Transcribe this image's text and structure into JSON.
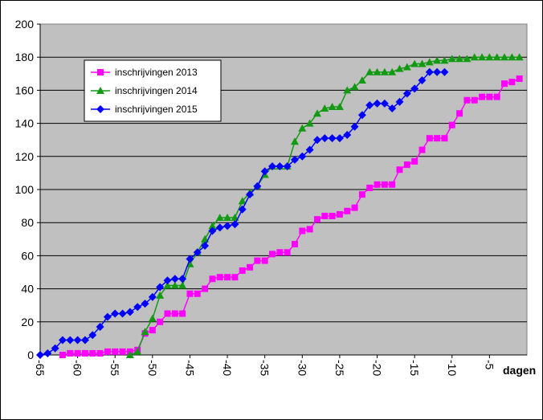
{
  "chart_data": {
    "type": "line",
    "x": [
      -65,
      -64,
      -63,
      -62,
      -61,
      -60,
      -59,
      -58,
      -57,
      -56,
      -55,
      -54,
      -53,
      -52,
      -51,
      -50,
      -49,
      -48,
      -47,
      -46,
      -45,
      -44,
      -43,
      -42,
      -41,
      -40,
      -39,
      -38,
      -37,
      -36,
      -35,
      -34,
      -33,
      -32,
      -31,
      -30,
      -29,
      -28,
      -27,
      -26,
      -25,
      -24,
      -23,
      -22,
      -21,
      -20,
      -19,
      -18,
      -17,
      -16,
      -15,
      -14,
      -13,
      -12,
      -11,
      -10,
      -9,
      -8,
      -7,
      -6,
      -5,
      -4,
      -3,
      -2,
      -1
    ],
    "series": [
      {
        "name": "inschrijvingen 2013",
        "color": "#ff00ff",
        "marker": "square",
        "values": [
          null,
          null,
          null,
          0,
          1,
          1,
          1,
          1,
          1,
          2,
          2,
          2,
          2,
          3,
          13,
          15,
          20,
          25,
          25,
          25,
          37,
          37,
          40,
          46,
          47,
          47,
          47,
          51,
          53,
          57,
          57,
          61,
          62,
          62,
          67,
          75,
          76,
          82,
          84,
          84,
          85,
          87,
          89,
          97,
          101,
          103,
          103,
          103,
          112,
          115,
          117,
          124,
          131,
          131,
          131,
          139,
          146,
          154,
          154,
          156,
          156,
          156,
          164,
          165,
          167
        ]
      },
      {
        "name": "inschrijvingen 2014",
        "color": "#139a13",
        "marker": "triangle",
        "values": [
          null,
          null,
          null,
          null,
          null,
          null,
          null,
          null,
          null,
          null,
          null,
          null,
          0,
          2,
          14,
          22,
          36,
          42,
          42,
          42,
          55,
          62,
          70,
          78,
          83,
          83,
          83,
          93,
          98,
          102,
          109,
          114,
          114,
          114,
          129,
          137,
          140,
          146,
          149,
          150,
          150,
          160,
          162,
          166,
          171,
          171,
          171,
          171,
          173,
          174,
          176,
          176,
          177,
          178,
          178,
          179,
          179,
          179,
          180,
          180,
          180,
          180,
          180,
          180,
          180
        ]
      },
      {
        "name": "inschrijvingen 2015",
        "color": "#0000ff",
        "marker": "diamond",
        "values": [
          0,
          1,
          4,
          9,
          9,
          9,
          9,
          12,
          17,
          23,
          25,
          25,
          26,
          29,
          31,
          35,
          41,
          45,
          46,
          46,
          58,
          62,
          66,
          75,
          77,
          78,
          79,
          88,
          97,
          102,
          111,
          114,
          114,
          114,
          118,
          120,
          124,
          130,
          131,
          131,
          131,
          133,
          138,
          145,
          151,
          152,
          152,
          149,
          153,
          158,
          161,
          166,
          171,
          171,
          171,
          null,
          null,
          null,
          null,
          null,
          null,
          null,
          null,
          null,
          null
        ]
      }
    ],
    "xlabel": "dagen",
    "xlim": [
      -65,
      0
    ],
    "xticks": [
      -65,
      -60,
      -55,
      -50,
      -45,
      -40,
      -35,
      -30,
      -25,
      -20,
      -15,
      -10,
      -5
    ],
    "ylim": [
      0,
      200
    ],
    "yticks": [
      0,
      20,
      40,
      60,
      80,
      100,
      120,
      140,
      160,
      180,
      200
    ],
    "grid": true,
    "legend": "upper left"
  }
}
